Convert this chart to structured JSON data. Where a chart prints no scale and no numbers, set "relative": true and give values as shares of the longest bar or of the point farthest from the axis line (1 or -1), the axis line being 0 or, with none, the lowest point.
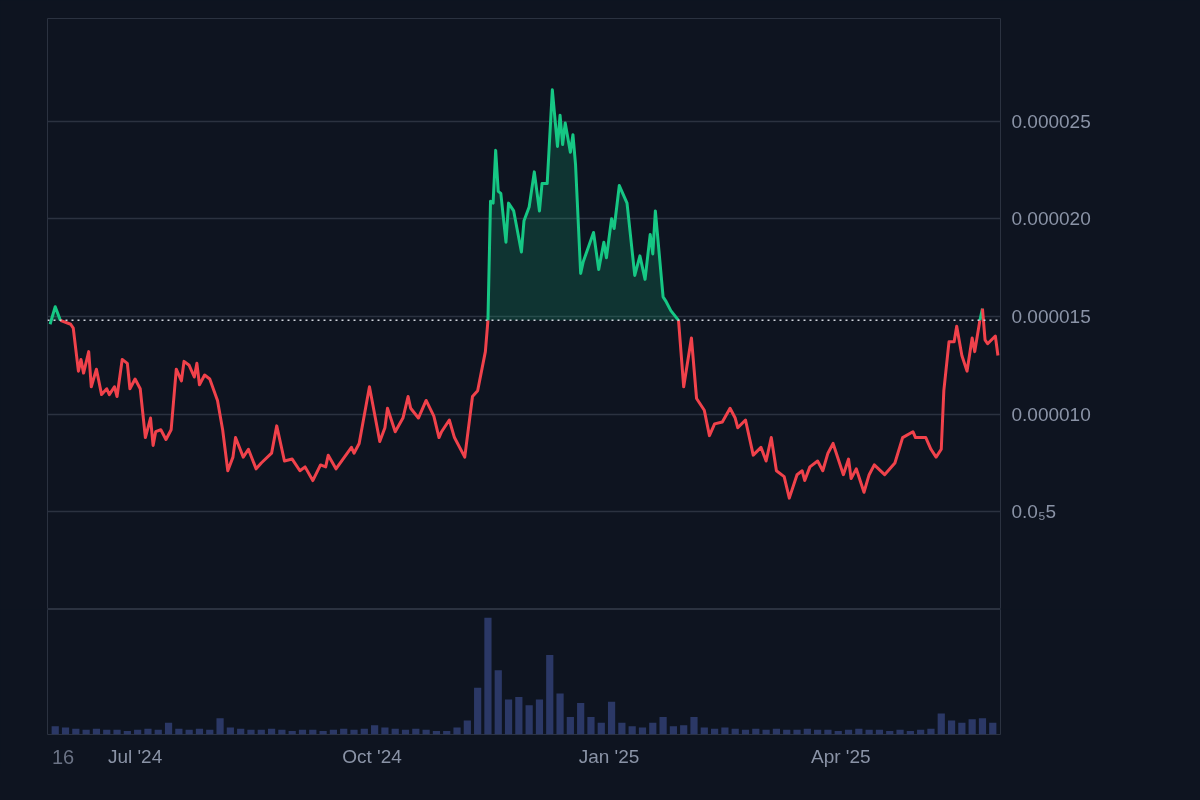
{
  "chart_data": [
    {
      "type": "area",
      "series": [
        {
          "color": "#16c784",
          "x": [
            "2024-05-29",
            "2024-05-31",
            "2024-06-02",
            "2024-08-01",
            "2024-11-15",
            "2024-11-16",
            "2024-11-17",
            "2024-11-18",
            "2024-11-19",
            "2024-11-20",
            "2024-11-22",
            "2024-11-23",
            "2024-11-25",
            "2024-11-28",
            "2024-11-29",
            "2024-12-01",
            "2024-12-03",
            "2024-12-05",
            "2024-12-06",
            "2024-12-08",
            "2024-12-10",
            "2024-12-12",
            "2024-12-13",
            "2024-12-14",
            "2024-12-15",
            "2024-12-17",
            "2024-12-18",
            "2024-12-19",
            "2024-12-21",
            "2024-12-22",
            "2024-12-26",
            "2024-12-28",
            "2024-12-30",
            "2024-12-31",
            "2025-01-02",
            "2025-01-03",
            "2025-01-05",
            "2025-01-08",
            "2025-01-11",
            "2025-01-13",
            "2025-01-15",
            "2025-01-17",
            "2025-01-18",
            "2025-01-19",
            "2025-01-22",
            "2025-01-23",
            "2025-01-25",
            "2025-01-28"
          ],
          "values": [
            1.46e-05,
            1.55e-05,
            1.48e-05,
            null,
            1.48e-05,
            2.09e-05,
            2.08e-05,
            2.35e-05,
            2.14e-05,
            2.13e-05,
            1.88e-05,
            2.08e-05,
            2.04e-05,
            1.83e-05,
            1.99e-05,
            2.06e-05,
            2.24e-05,
            2.04e-05,
            2.18e-05,
            2.18e-05,
            2.66e-05,
            2.37e-05,
            2.53e-05,
            2.38e-05,
            2.49e-05,
            2.34e-05,
            2.43e-05,
            2.28e-05,
            1.72e-05,
            1.78e-05,
            1.93e-05,
            1.74e-05,
            1.88e-05,
            1.8e-05,
            2e-05,
            1.95e-05,
            2.17e-05,
            2.08e-05,
            1.71e-05,
            1.81e-05,
            1.69e-05,
            1.92e-05,
            1.82e-05,
            2.04e-05,
            1.6e-05,
            1.58e-05,
            1.53e-05,
            1.48e-05
          ]
        },
        {
          "color": "#16c784",
          "type": "line",
          "x": [
            "2025-05-25",
            "2025-05-26"
          ],
          "values": [
            1.48e-05,
            1.54e-05
          ]
        },
        {
          "color": "#f0424b",
          "type": "line",
          "x": [
            "2024-06-02",
            "2024-06-06",
            "2024-06-07",
            "2024-06-09",
            "2024-06-10",
            "2024-06-11",
            "2024-06-13",
            "2024-06-14",
            "2024-06-16",
            "2024-06-18",
            "2024-06-20",
            "2024-06-21",
            "2024-06-23",
            "2024-06-24",
            "2024-06-26",
            "2024-06-28",
            "2024-06-29",
            "2024-07-01",
            "2024-07-03",
            "2024-07-05",
            "2024-07-07",
            "2024-07-08",
            "2024-07-09",
            "2024-07-11",
            "2024-07-13",
            "2024-07-15",
            "2024-07-17",
            "2024-07-19",
            "2024-07-20",
            "2024-07-22",
            "2024-07-24",
            "2024-07-25",
            "2024-07-26",
            "2024-07-28",
            "2024-07-30",
            "2024-08-02",
            "2024-08-04",
            "2024-08-06",
            "2024-08-08",
            "2024-08-09",
            "2024-08-12",
            "2024-08-14",
            "2024-08-17",
            "2024-08-19",
            "2024-08-23",
            "2024-08-25",
            "2024-08-28",
            "2024-08-31",
            "2024-09-03",
            "2024-09-05",
            "2024-09-08",
            "2024-09-11",
            "2024-09-13",
            "2024-09-14",
            "2024-09-17",
            "2024-09-23",
            "2024-09-24",
            "2024-09-26",
            "2024-09-30",
            "2024-10-04",
            "2024-10-06",
            "2024-10-07",
            "2024-10-10",
            "2024-10-13",
            "2024-10-15",
            "2024-10-16",
            "2024-10-19",
            "2024-10-22",
            "2024-10-25",
            "2024-10-27",
            "2024-10-28",
            "2024-10-31",
            "2024-11-02",
            "2024-11-06",
            "2024-11-09",
            "2024-11-11",
            "2024-11-14",
            "2024-11-15",
            "2024-12-15",
            "2025-01-28",
            "2025-01-30",
            "2025-02-02",
            "2025-02-04",
            "2025-02-07",
            "2025-02-09",
            "2025-02-11",
            "2025-02-14",
            "2025-02-17",
            "2025-02-19",
            "2025-02-20",
            "2025-02-23",
            "2025-02-26",
            "2025-03-01",
            "2025-03-03",
            "2025-03-05",
            "2025-03-07",
            "2025-03-10",
            "2025-03-12",
            "2025-03-15",
            "2025-03-17",
            "2025-03-18",
            "2025-03-20",
            "2025-03-23",
            "2025-03-25",
            "2025-03-27",
            "2025-03-29",
            "2025-04-02",
            "2025-04-04",
            "2025-04-05",
            "2025-04-07",
            "2025-04-10",
            "2025-04-12",
            "2025-04-14",
            "2025-04-18",
            "2025-04-22",
            "2025-04-25",
            "2025-04-29",
            "2025-04-30",
            "2025-05-04",
            "2025-05-06",
            "2025-05-08",
            "2025-05-10",
            "2025-05-11",
            "2025-05-13",
            "2025-05-15",
            "2025-05-16",
            "2025-05-18",
            "2025-05-20",
            "2025-05-22",
            "2025-05-23",
            "2025-05-25",
            "2025-05-25T12:00",
            "2025-05-26",
            "2025-05-27",
            "2025-05-28",
            "2025-05-31",
            "2025-06-01"
          ],
          "values": [
            1.48e-05,
            1.46e-05,
            1.44e-05,
            1.22e-05,
            1.28e-05,
            1.21e-05,
            1.32e-05,
            1.14e-05,
            1.23e-05,
            1.1e-05,
            1.13e-05,
            1.1e-05,
            1.14e-05,
            1.09e-05,
            1.28e-05,
            1.26e-05,
            1.13e-05,
            1.18e-05,
            1.13e-05,
            8.8e-06,
            9.8e-06,
            8.4e-06,
            9.1e-06,
            9.2e-06,
            8.7e-06,
            9.2e-06,
            1.23e-05,
            1.17e-05,
            1.27e-05,
            1.25e-05,
            1.19e-05,
            1.26e-05,
            1.15e-05,
            1.2e-05,
            1.18e-05,
            1.07e-05,
            9.2e-06,
            7.1e-06,
            7.8e-06,
            8.8e-06,
            7.8e-06,
            8.2e-06,
            7.2e-06,
            7.5e-06,
            8e-06,
            9.4e-06,
            7.6e-06,
            7.7e-06,
            7.1e-06,
            7.3e-06,
            6.6e-06,
            7.4e-06,
            7.3e-06,
            7.9e-06,
            7.2e-06,
            8.3e-06,
            8e-06,
            8.5e-06,
            1.14e-05,
            8.6e-06,
            9.3e-06,
            1.03e-05,
            9.1e-06,
            9.8e-06,
            1.09e-05,
            1.03e-05,
            9.8e-06,
            1.07e-05,
            9.9e-06,
            8.8e-06,
            9.1e-06,
            9.7e-06,
            8.8e-06,
            7.8e-06,
            1.09e-05,
            1.12e-05,
            1.32e-05,
            1.48e-05,
            null,
            1.48e-05,
            1.14e-05,
            1.39e-05,
            1.08e-05,
            1.02e-05,
            8.9e-06,
            9.5e-06,
            9.6e-06,
            1.03e-05,
            9.8e-06,
            9.3e-06,
            9.7e-06,
            7.9e-06,
            8.3e-06,
            7.6e-06,
            8.8e-06,
            7.1e-06,
            6.8e-06,
            5.7e-06,
            6.9e-06,
            7.1e-06,
            6.6e-06,
            7.3e-06,
            7.6e-06,
            7.1e-06,
            8e-06,
            8.5e-06,
            6.9e-06,
            7.7e-06,
            6.7e-06,
            7.2e-06,
            6e-06,
            6.9e-06,
            7.4e-06,
            6.9e-06,
            7.5e-06,
            8.8e-06,
            9.1e-06,
            8.8e-06,
            8.8e-06,
            8.2e-06,
            7.8e-06,
            8.2e-06,
            1.12e-05,
            1.37e-05,
            1.37e-05,
            1.45e-05,
            1.3e-05,
            1.22e-05,
            1.39e-05,
            1.32e-05,
            1.48e-05,
            null,
            1.54e-05,
            1.38e-05,
            1.36e-05,
            1.4e-05,
            1.3e-05
          ]
        }
      ],
      "xlim": [
        "2024-05-28",
        "2025-06-02"
      ],
      "ylim": [
        0,
        3.025e-05
      ],
      "yticks": [
        {
          "value": 0,
          "label": null
        },
        {
          "value": 5e-06,
          "label": "0.0₅5"
        },
        {
          "value": 1e-05,
          "label": "0.000010"
        },
        {
          "value": 1.5e-05,
          "label": "0.000015"
        },
        {
          "value": 2e-05,
          "label": "0.000020"
        },
        {
          "value": 2.5e-05,
          "label": "0.000025"
        }
      ],
      "ref_lines": [
        {
          "axis": "y",
          "value": 1.48e-05,
          "color": "#d0d4dc",
          "line_style": "dotted"
        }
      ],
      "grid": "y",
      "tick_labels": "y"
    },
    {
      "type": "bar",
      "relative": true,
      "x": [
        "2024-05-31",
        "2024-06-04",
        "2024-06-08",
        "2024-06-12",
        "2024-06-16",
        "2024-06-20",
        "2024-06-24",
        "2024-06-28",
        "2024-07-02",
        "2024-07-06",
        "2024-07-10",
        "2024-07-14",
        "2024-07-18",
        "2024-07-22",
        "2024-07-26",
        "2024-07-30",
        "2024-08-03",
        "2024-08-07",
        "2024-08-11",
        "2024-08-15",
        "2024-08-19",
        "2024-08-23",
        "2024-08-27",
        "2024-08-31",
        "2024-09-04",
        "2024-09-08",
        "2024-09-12",
        "2024-09-16",
        "2024-09-20",
        "2024-09-24",
        "2024-09-28",
        "2024-10-02",
        "2024-10-06",
        "2024-10-10",
        "2024-10-14",
        "2024-10-18",
        "2024-10-22",
        "2024-10-26",
        "2024-10-30",
        "2024-11-03",
        "2024-11-07",
        "2024-11-11",
        "2024-11-15",
        "2024-11-19",
        "2024-11-23",
        "2024-11-27",
        "2024-12-01",
        "2024-12-05",
        "2024-12-09",
        "2024-12-13",
        "2024-12-17",
        "2024-12-21",
        "2024-12-25",
        "2024-12-29",
        "2025-01-02",
        "2025-01-06",
        "2025-01-10",
        "2025-01-14",
        "2025-01-18",
        "2025-01-22",
        "2025-01-26",
        "2025-01-30",
        "2025-02-03",
        "2025-02-07",
        "2025-02-11",
        "2025-02-15",
        "2025-02-19",
        "2025-02-23",
        "2025-02-27",
        "2025-03-03",
        "2025-03-07",
        "2025-03-11",
        "2025-03-15",
        "2025-03-19",
        "2025-03-23",
        "2025-03-27",
        "2025-03-31",
        "2025-04-04",
        "2025-04-08",
        "2025-04-12",
        "2025-04-16",
        "2025-04-20",
        "2025-04-24",
        "2025-04-28",
        "2025-05-02",
        "2025-05-06",
        "2025-05-10",
        "2025-05-14",
        "2025-05-18",
        "2025-05-22",
        "2025-05-26",
        "2025-05-30"
      ],
      "values": [
        0.07,
        0.06,
        0.05,
        0.04,
        0.05,
        0.04,
        0.04,
        0.03,
        0.04,
        0.05,
        0.04,
        0.1,
        0.05,
        0.04,
        0.05,
        0.04,
        0.14,
        0.06,
        0.05,
        0.04,
        0.04,
        0.05,
        0.04,
        0.03,
        0.04,
        0.04,
        0.03,
        0.04,
        0.05,
        0.04,
        0.05,
        0.08,
        0.06,
        0.05,
        0.04,
        0.05,
        0.04,
        0.03,
        0.03,
        0.06,
        0.12,
        0.4,
        1.0,
        0.55,
        0.3,
        0.32,
        0.25,
        0.3,
        0.68,
        0.35,
        0.15,
        0.27,
        0.15,
        0.1,
        0.28,
        0.1,
        0.07,
        0.06,
        0.1,
        0.15,
        0.07,
        0.08,
        0.15,
        0.06,
        0.05,
        0.06,
        0.05,
        0.04,
        0.05,
        0.04,
        0.05,
        0.04,
        0.04,
        0.05,
        0.04,
        0.04,
        0.03,
        0.04,
        0.05,
        0.04,
        0.04,
        0.03,
        0.04,
        0.03,
        0.04,
        0.05,
        0.18,
        0.12,
        0.1,
        0.13,
        0.14,
        0.1
      ],
      "color": "#2b3866",
      "xlim": [
        "2024-05-28",
        "2025-06-02"
      ],
      "xticks": [
        {
          "value": "2024-07-01",
          "label": "Jul '24"
        },
        {
          "value": "2024-10-01",
          "label": "Oct '24"
        },
        {
          "value": "2025-01-01",
          "label": "Jan '25"
        },
        {
          "value": "2025-04-01",
          "label": "Apr '25"
        }
      ],
      "tick_labels": "x",
      "grid": false,
      "annotations": [
        "16"
      ]
    }
  ]
}
